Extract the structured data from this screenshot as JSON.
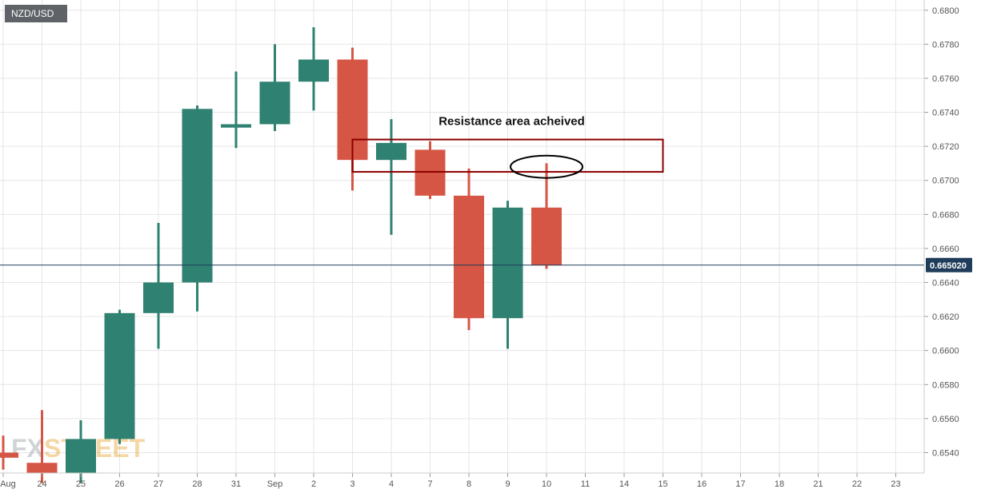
{
  "chart_data": {
    "type": "candlestick",
    "symbol": "NZD/USD",
    "x_tick_labels": [
      "Aug",
      "24",
      "25",
      "26",
      "27",
      "28",
      "31",
      "Sep",
      "2",
      "3",
      "4",
      "7",
      "8",
      "9",
      "10",
      "11",
      "14",
      "15",
      "16",
      "17",
      "18",
      "21",
      "22",
      "23"
    ],
    "ylim": [
      0.6528,
      0.6806
    ],
    "y_ticks": [
      "0.6540",
      "0.6560",
      "0.6580",
      "0.6600",
      "0.6620",
      "0.6640",
      "0.6660",
      "0.6680",
      "0.6700",
      "0.6720",
      "0.6740",
      "0.6760",
      "0.6780",
      "0.6800"
    ],
    "current_price": "0.665020",
    "current_price_value": 0.66502,
    "grid": true,
    "candles": [
      {
        "date": "Aug 21",
        "open": 0.654,
        "high": 0.655,
        "low": 0.653,
        "close": 0.6537
      },
      {
        "date": "24",
        "open": 0.6534,
        "high": 0.6565,
        "low": 0.6522,
        "close": 0.6528
      },
      {
        "date": "25",
        "open": 0.6528,
        "high": 0.6559,
        "low": 0.6522,
        "close": 0.6548
      },
      {
        "date": "26",
        "open": 0.6548,
        "high": 0.6624,
        "low": 0.6545,
        "close": 0.6622
      },
      {
        "date": "27",
        "open": 0.6622,
        "high": 0.6675,
        "low": 0.6601,
        "close": 0.664
      },
      {
        "date": "28",
        "open": 0.664,
        "high": 0.6744,
        "low": 0.6623,
        "close": 0.6742
      },
      {
        "date": "31",
        "open": 0.6731,
        "high": 0.6764,
        "low": 0.6719,
        "close": 0.6733
      },
      {
        "date": "Sep 1",
        "open": 0.6733,
        "high": 0.678,
        "low": 0.6729,
        "close": 0.6758
      },
      {
        "date": "2",
        "open": 0.6758,
        "high": 0.679,
        "low": 0.6741,
        "close": 0.6771
      },
      {
        "date": "3",
        "open": 0.6771,
        "high": 0.6778,
        "low": 0.6694,
        "close": 0.6712
      },
      {
        "date": "4",
        "open": 0.6712,
        "high": 0.6736,
        "low": 0.6668,
        "close": 0.6722
      },
      {
        "date": "7",
        "open": 0.6718,
        "high": 0.6723,
        "low": 0.6689,
        "close": 0.6691
      },
      {
        "date": "8",
        "open": 0.6691,
        "high": 0.6707,
        "low": 0.6612,
        "close": 0.6619
      },
      {
        "date": "9",
        "open": 0.6619,
        "high": 0.6688,
        "low": 0.6601,
        "close": 0.6684
      },
      {
        "date": "10",
        "open": 0.6684,
        "high": 0.671,
        "low": 0.6648,
        "close": 0.665
      }
    ],
    "annotations": {
      "resistance_label": "Resistance area acheived",
      "resistance_zone": {
        "from_date": "3",
        "to_date": "15",
        "top": 0.6724,
        "bottom": 0.6705
      },
      "ellipse_near": {
        "date": "10",
        "price": 0.6708
      }
    },
    "watermark": "FXSTREET",
    "colors": {
      "up": "#2f8171",
      "down": "#d65645",
      "grid": "#e6e6e6",
      "price_line": "#1f3d5a",
      "price_badge": "#1f3d5a",
      "zone": "#8b0000"
    }
  }
}
